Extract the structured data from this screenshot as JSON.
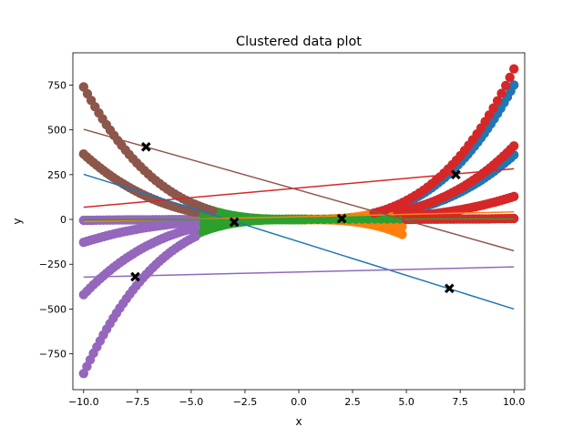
{
  "chart_data": {
    "type": "scatter",
    "title": "Clustered data plot",
    "xlabel": "x",
    "ylabel": "y",
    "xlim": [
      -10.5,
      10.5
    ],
    "ylim": [
      -950,
      930
    ],
    "xticks": [
      -10.0,
      -7.5,
      -5.0,
      -2.5,
      0.0,
      2.5,
      5.0,
      7.5,
      10.0
    ],
    "xtick_labels": [
      "−10.0",
      "−7.5",
      "−5.0",
      "−2.5",
      "0.0",
      "2.5",
      "5.0",
      "7.5",
      "10.0"
    ],
    "yticks": [
      -750,
      -500,
      -250,
      0,
      250,
      500,
      750
    ],
    "ytick_labels": [
      "−750",
      "−500",
      "−250",
      "0",
      "250",
      "500",
      "750"
    ],
    "grid": false,
    "legend": false,
    "point_size_note": "large circular markers",
    "series": [
      {
        "color": "#1f77b4",
        "segments": [
          {
            "xfrom": 4.8,
            "xto": 10.0,
            "curve": "cubic",
            "k": 0.75
          },
          {
            "xfrom": 4.8,
            "xto": 10.0,
            "curve": "cubic",
            "k": 0.36
          }
        ],
        "fit_line": {
          "x": [
            -10.0,
            10.0
          ],
          "y": [
            252,
            -500
          ]
        }
      },
      {
        "color": "#ff7f0e",
        "segments": [
          {
            "xfrom": -0.5,
            "xto": 4.8,
            "curve": "cubic",
            "k": 0.75
          },
          {
            "xfrom": -0.5,
            "xto": 4.8,
            "curve": "cubic",
            "k": 0.36
          },
          {
            "xfrom": -0.5,
            "xto": 4.8,
            "curve": "cubic",
            "k": -0.75
          },
          {
            "xfrom": -0.5,
            "xto": 4.8,
            "curve": "cubic",
            "k": -0.36
          },
          {
            "xfrom": -0.5,
            "xto": 4.8,
            "curve": "cubic",
            "k": 0.12
          },
          {
            "xfrom": -0.5,
            "xto": 4.8,
            "curve": "cubic",
            "k": -0.12
          },
          {
            "xfrom": -5.0,
            "xto": 5.0,
            "curve": "linear",
            "k": 0.9
          }
        ],
        "fit_line": {
          "x": [
            -10.0,
            10.0
          ],
          "y": [
            -12,
            42
          ]
        }
      },
      {
        "color": "#2ca02c",
        "segments": [
          {
            "xfrom": -4.8,
            "xto": 0.3,
            "curve": "cubic",
            "k": 0.75
          },
          {
            "xfrom": -4.8,
            "xto": 0.3,
            "curve": "cubic",
            "k": 0.36
          },
          {
            "xfrom": -4.8,
            "xto": 0.3,
            "curve": "cubic",
            "k": -0.75
          },
          {
            "xfrom": -4.8,
            "xto": 0.3,
            "curve": "cubic",
            "k": -0.36
          },
          {
            "xfrom": -4.8,
            "xto": 0.3,
            "curve": "cubic",
            "k": 0.12
          },
          {
            "xfrom": -4.8,
            "xto": 0.3,
            "curve": "cubic",
            "k": -0.12
          },
          {
            "xfrom": -5.0,
            "xto": 5.0,
            "curve": "linear",
            "k": 0.7
          }
        ],
        "fit_line": {
          "x": [
            -10.0,
            10.0
          ],
          "y": [
            -2,
            3
          ]
        }
      },
      {
        "color": "#d62728",
        "segments": [
          {
            "xfrom": 3.5,
            "xto": 10.0,
            "curve": "cubic",
            "k": 0.84
          },
          {
            "xfrom": 4.6,
            "xto": 10.0,
            "curve": "cubic",
            "k": 0.41
          },
          {
            "xfrom": 5.0,
            "xto": 10.0,
            "curve": "cubic",
            "k": 0.128
          },
          {
            "xfrom": 5.0,
            "xto": 10.0,
            "curve": "cubic",
            "k": 0.005
          }
        ],
        "fit_line": {
          "x": [
            -10.0,
            10.0
          ],
          "y": [
            68,
            283
          ]
        }
      },
      {
        "color": "#9467bd",
        "segments": [
          {
            "xfrom": -10.0,
            "xto": -4.8,
            "curve": "cubic",
            "k": 0.86
          },
          {
            "xfrom": -10.0,
            "xto": -4.8,
            "curve": "cubic",
            "k": 0.42
          },
          {
            "xfrom": -10.0,
            "xto": -4.8,
            "curve": "cubic",
            "k": 0.128
          },
          {
            "xfrom": -10.0,
            "xto": -4.8,
            "curve": "cubic",
            "k": 0.005
          }
        ],
        "fit_line": {
          "x": [
            -10.0,
            10.0
          ],
          "y": [
            -322,
            -265
          ]
        }
      },
      {
        "color": "#8c564b",
        "segments": [
          {
            "xfrom": -10.0,
            "xto": -4.0,
            "curve": "cubic",
            "k": -0.74
          },
          {
            "xfrom": -10.0,
            "xto": -4.8,
            "curve": "cubic",
            "k": -0.365
          }
        ],
        "fit_line": {
          "x": [
            -10.0,
            10.0
          ],
          "y": [
            503,
            -175
          ]
        }
      }
    ],
    "centroids": [
      {
        "x": -7.1,
        "y": 405
      },
      {
        "x": -7.6,
        "y": -320
      },
      {
        "x": -3.0,
        "y": -15
      },
      {
        "x": 2.0,
        "y": 5
      },
      {
        "x": 7.3,
        "y": 250
      },
      {
        "x": 7.0,
        "y": -385
      }
    ],
    "centroid_color": "#000000"
  }
}
